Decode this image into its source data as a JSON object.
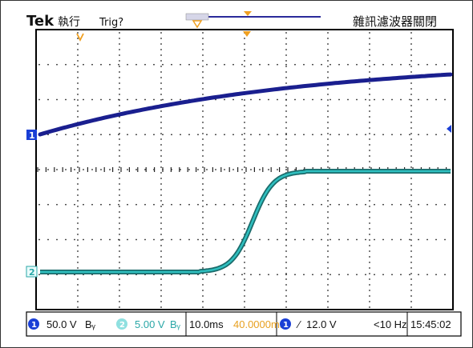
{
  "header": {
    "brand": "Tek",
    "run_state": "執行",
    "trigger_status": "Trig?",
    "mode_text": "雜訊濾波器關閉"
  },
  "channels": {
    "ch1_marker": "1",
    "ch2_marker": "2",
    "ch1_color": "#1a1f8f",
    "ch2_color": "#2aa7a7"
  },
  "status_bar": {
    "ch1_badge": "1",
    "ch1_scale": "50.0 V",
    "ch1_bw": "Bᵧ",
    "ch2_badge": "2",
    "ch2_scale": "5.00 V",
    "ch2_bw": "Bᵧ",
    "timebase": "10.0ms",
    "trigger_position": "40.0000ms",
    "trig_badge": "1",
    "trigger_edge": "∕",
    "trigger_level": "12.0 V",
    "trigger_freq": "<10 Hz",
    "clock": "15:45:02"
  },
  "colors": {
    "grid": "#222222",
    "trigger_marker": "#f0a020"
  }
}
